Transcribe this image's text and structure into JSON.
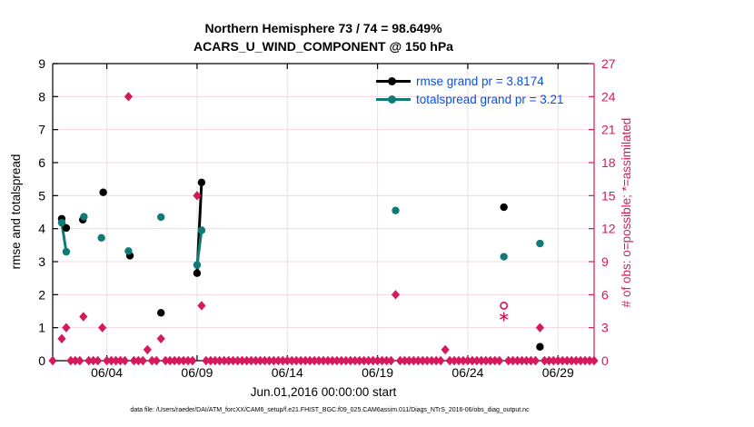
{
  "title": {
    "line1": "Northern Hemisphere 73 / 74 = 98.649%",
    "line2": "ACARS_U_WIND_COMPONENT @ 150 hPa"
  },
  "legend": {
    "items": [
      {
        "series": "rmse",
        "label": "rmse grand pr = 3.8174"
      },
      {
        "series": "totalspread",
        "label": "totalspread grand pr = 3.21"
      }
    ]
  },
  "axes": {
    "left_label": "rmse and totalspread",
    "right_label": "# of obs: o=possible; *=assimilated",
    "x_label": "Jun.01,2016 00:00:00 start"
  },
  "footer": "data file: /Users/raeder/DAI/ATM_forcXX/CAM6_setup/f.e21.FHIST_BGC.f09_025.CAM6assim.011/Diags_NTrS_2016-06/obs_diag_output.nc",
  "colors": {
    "rmse": "#000000",
    "totalspread": "#107a76",
    "obs": "#d6195c",
    "legend_text": "#0050f0",
    "grid_horizontal": "#f6d6df",
    "grid_vertical": "#e4e4e4",
    "spine": "#000000"
  },
  "chart_data": {
    "type": "scatter",
    "title": "Northern Hemisphere 73 / 74 = 98.649%  |  ACARS_U_WIND_COMPONENT @ 150 hPa",
    "xlabel": "Jun.01,2016 00:00:00 start",
    "x_axis": {
      "units": "day of June 2016",
      "range_days": [
        1,
        31
      ],
      "ticks": [
        {
          "day": 4,
          "label": "06/04"
        },
        {
          "day": 9,
          "label": "06/09"
        },
        {
          "day": 14,
          "label": "06/14"
        },
        {
          "day": 19,
          "label": "06/19"
        },
        {
          "day": 24,
          "label": "06/24"
        },
        {
          "day": 29,
          "label": "06/29"
        }
      ]
    },
    "y_axis_left": {
      "label": "rmse and totalspread",
      "range": [
        0,
        9
      ],
      "ticks": [
        0,
        1,
        2,
        3,
        4,
        5,
        6,
        7,
        8,
        9
      ],
      "grid_at": [
        1,
        2,
        3,
        4,
        5,
        6,
        7,
        8
      ]
    },
    "y_axis_right": {
      "label": "# of obs: o=possible; *=assimilated",
      "range": [
        0,
        27
      ],
      "ticks": [
        0,
        3,
        6,
        9,
        12,
        15,
        18,
        21,
        24,
        27
      ]
    },
    "series": [
      {
        "name": "rmse",
        "grand_pr": 3.8174,
        "marker": "filled-circle",
        "points": [
          [
            1.5,
            4.3
          ],
          [
            1.75,
            4.02
          ],
          [
            2.67,
            4.27
          ],
          [
            3.8,
            5.1
          ],
          [
            5.28,
            3.18
          ],
          [
            7.0,
            1.45
          ],
          [
            9.0,
            2.65
          ],
          [
            9.25,
            5.4
          ],
          [
            26.0,
            4.65
          ],
          [
            28.0,
            0.42
          ]
        ],
        "segments": [
          [
            [
              1.5,
              4.3
            ],
            [
              1.75,
              4.02
            ]
          ],
          [
            [
              9.0,
              2.65
            ],
            [
              9.25,
              5.4
            ]
          ]
        ]
      },
      {
        "name": "totalspread",
        "grand_pr": 3.21,
        "marker": "filled-circle",
        "points": [
          [
            1.5,
            4.18
          ],
          [
            1.75,
            3.3
          ],
          [
            2.73,
            4.36
          ],
          [
            3.7,
            3.72
          ],
          [
            5.2,
            3.32
          ],
          [
            7.0,
            4.35
          ],
          [
            9.0,
            2.9
          ],
          [
            9.25,
            3.95
          ],
          [
            20.0,
            4.55
          ],
          [
            26.0,
            3.15
          ],
          [
            28.0,
            3.55
          ]
        ],
        "segments": [
          [
            [
              1.5,
              4.18
            ],
            [
              1.75,
              3.3
            ]
          ],
          [
            [
              9.0,
              2.9
            ],
            [
              9.25,
              3.95
            ]
          ]
        ]
      }
    ],
    "obs_counts": {
      "note": "right axis; diamond marks are o (possible) and * (assimilated) overlapping at equal counts",
      "nonzero": [
        [
          1.5,
          2
        ],
        [
          1.75,
          3
        ],
        [
          2.7,
          4
        ],
        [
          3.75,
          3
        ],
        [
          5.2,
          24
        ],
        [
          6.25,
          1
        ],
        [
          7.0,
          2
        ],
        [
          9.0,
          15
        ],
        [
          9.25,
          5
        ],
        [
          20.0,
          6
        ],
        [
          22.75,
          1
        ],
        [
          28.0,
          3
        ]
      ],
      "possible_only": [
        [
          26.0,
          5
        ]
      ],
      "assimilated_only": [
        [
          26.0,
          4
        ]
      ],
      "zero_chain": {
        "start": 1.0,
        "end": 31.0,
        "step": 0.25,
        "exclude_days": [
          1.25,
          1.5,
          1.75,
          2.75,
          3.75,
          5.25,
          6.25,
          7.0,
          9.0,
          9.25,
          20.0,
          22.75,
          26.0,
          28.0
        ]
      }
    }
  }
}
